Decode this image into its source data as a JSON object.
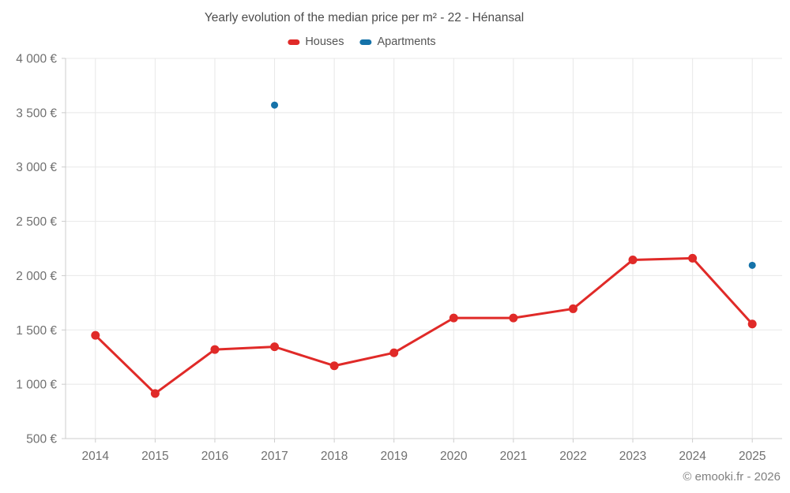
{
  "title": "Yearly evolution of the median price per m² - 22 - Hénansal",
  "copyright": "© emooki.fr - 2026",
  "legend": {
    "items": [
      {
        "label": "Houses",
        "color": "#e02a28"
      },
      {
        "label": "Apartments",
        "color": "#1572a9"
      }
    ]
  },
  "colors": {
    "background": "#ffffff",
    "grid": "#e8e8e8",
    "axis": "#cccccc",
    "title_text": "#4d4d4d",
    "axis_text": "#707070",
    "legend_text": "#555555",
    "copyright_text": "#808080"
  },
  "chart_data": {
    "type": "line",
    "title": "Yearly evolution of the median price per m² - 22 - Hénansal",
    "categories": [
      "2014",
      "2015",
      "2016",
      "2017",
      "2018",
      "2019",
      "2020",
      "2021",
      "2022",
      "2023",
      "2024",
      "2025"
    ],
    "series": [
      {
        "name": "Houses",
        "color": "#e02a28",
        "line_width": 3,
        "point_radius": 5.5,
        "values": [
          1450,
          915,
          1320,
          1345,
          1170,
          1290,
          1610,
          1610,
          1695,
          2145,
          2160,
          1555
        ]
      },
      {
        "name": "Apartments",
        "color": "#1572a9",
        "line_width": 0,
        "point_radius": 4.5,
        "values": [
          null,
          null,
          null,
          3570,
          null,
          null,
          null,
          null,
          null,
          null,
          null,
          2095
        ]
      }
    ],
    "xlabel": "",
    "ylabel": "",
    "ylim": [
      500,
      4000
    ],
    "ytick_step": 500,
    "ytick_suffix": " €",
    "grid": true,
    "legend_position": "top"
  }
}
